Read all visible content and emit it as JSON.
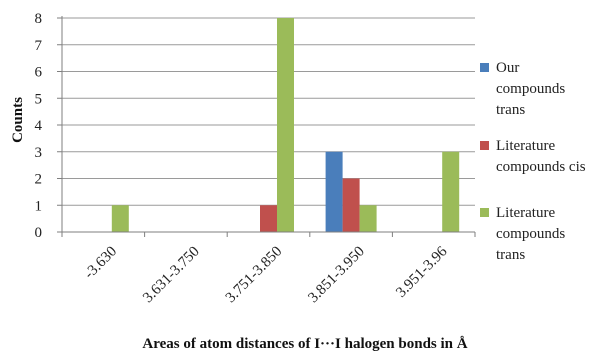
{
  "chart_data": {
    "type": "bar",
    "title": "",
    "xlabel": "Areas of atom distances of I···I halogen bonds in Å",
    "ylabel": "Counts",
    "categories": [
      "-3.630",
      "3.631-3.750",
      "3.751-3.850",
      "3.851-3.950",
      "3.951-3.96"
    ],
    "ylim": [
      0,
      8
    ],
    "yticks": [
      "0",
      "1",
      "2",
      "3",
      "4",
      "5",
      "6",
      "7",
      "8"
    ],
    "grid": true,
    "legend_position": "right",
    "series": [
      {
        "name": "Our compounds trans",
        "legend_lines": [
          "Our",
          "compounds",
          "trans"
        ],
        "color": "#4a7ebb",
        "values": [
          0,
          0,
          0,
          3,
          0
        ]
      },
      {
        "name": "Literature compounds cis",
        "legend_lines": [
          "Literature",
          "compounds cis"
        ],
        "color": "#c0504d",
        "values": [
          0,
          0,
          1,
          2,
          0
        ]
      },
      {
        "name": "Literature compounds trans",
        "legend_lines": [
          "Literature",
          "compounds",
          "trans"
        ],
        "color": "#9bbb59",
        "values": [
          1,
          0,
          8,
          1,
          3
        ]
      }
    ]
  }
}
